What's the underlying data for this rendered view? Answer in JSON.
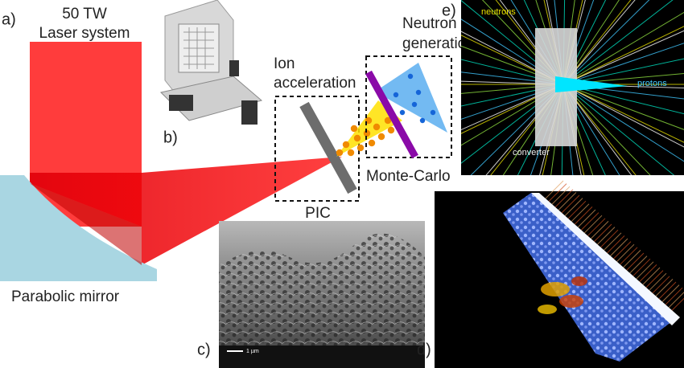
{
  "panels": {
    "a": {
      "label": "a)",
      "laser": [
        "50 TW",
        "Laser system"
      ],
      "mirror": "Parabolic mirror"
    },
    "b": {
      "label": "b)"
    },
    "pic": {
      "title": [
        "Ion",
        "acceleration"
      ],
      "caption": "PIC"
    },
    "mc": {
      "title": [
        "Neutron",
        "generation"
      ],
      "caption": "Monte-Carlo"
    },
    "c": {
      "label": "c)",
      "scale": "1 µm"
    },
    "d": {
      "label": "d)"
    },
    "e": {
      "label": "e)",
      "neutrons": "neutrons",
      "protons": "protons",
      "converter": "converter"
    }
  }
}
